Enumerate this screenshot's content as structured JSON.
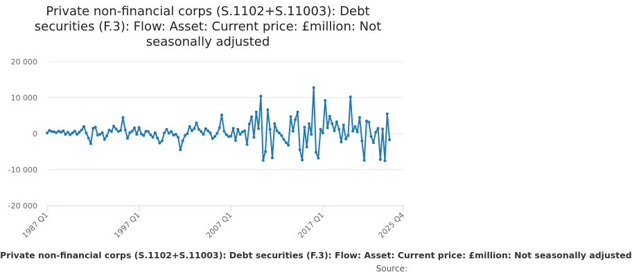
{
  "chart_data": {
    "type": "line",
    "title": "Private non-financial corps (S.1102+S.11003): Debt securities (F.3): Flow: Asset: Current price: £million: Not seasonally adjusted",
    "xlabel": "",
    "ylabel": "",
    "ylim": [
      -20000,
      20000
    ],
    "yticks": [
      "20 000",
      "10 000",
      "0",
      "-10 000",
      "-20 000"
    ],
    "ytick_values": [
      20000,
      10000,
      0,
      -10000,
      -20000
    ],
    "xlim": [
      0,
      155
    ],
    "xticks": [
      "1987 Q1",
      "1997 Q1",
      "2007 Q1",
      "2017 Q1",
      "2025 Q4"
    ],
    "xtick_positions": [
      0,
      40,
      80,
      120,
      155
    ],
    "grid": "horizontal",
    "legend_text": "Private non-financial corps (S.1102+S.11003): Debt securities (F.3): Flow: Asset: Current price: £million: Not seasonally adjusted",
    "source_label": "Source:",
    "series": [
      {
        "color": "#1f7ab4",
        "x_start": "1987 Q1",
        "values": [
          200,
          900,
          600,
          500,
          300,
          700,
          400,
          800,
          -200,
          400,
          -300,
          200,
          700,
          -200,
          400,
          1000,
          2000,
          200,
          -1200,
          -2800,
          1500,
          1800,
          -400,
          -200,
          300,
          -1600,
          -600,
          1000,
          600,
          2100,
          1300,
          600,
          900,
          4500,
          1000,
          -1300,
          300,
          700,
          1600,
          -200,
          1700,
          -100,
          -500,
          700,
          600,
          -300,
          -1000,
          300,
          -1200,
          -2600,
          -2000,
          200,
          1200,
          100,
          600,
          -400,
          -200,
          -1000,
          -4500,
          -2000,
          -500,
          0,
          2000,
          800,
          1400,
          3000,
          1200,
          600,
          -200,
          1400,
          800,
          200,
          -1400,
          -800,
          100,
          1600,
          5200,
          700,
          -300,
          -800,
          -700,
          1500,
          -1900,
          1200,
          -200,
          500,
          800,
          -3000,
          2700,
          4700,
          -1000,
          6000,
          1400,
          10400,
          -7400,
          -5000,
          6600,
          1200,
          -6700,
          2800,
          800,
          200,
          -500,
          -1600,
          -2500,
          -3200,
          4700,
          700,
          3900,
          6000,
          -4500,
          -7300,
          1800,
          -3700,
          2800,
          -200,
          12800,
          -5200,
          -6800,
          1200,
          200,
          9200,
          1600,
          4800,
          2800,
          800,
          3300,
          1200,
          -2300,
          2400,
          -1500,
          -500,
          10200,
          700,
          2000,
          500,
          4500,
          -2000,
          -7400,
          3500,
          3200,
          -800,
          -2500,
          400,
          1500,
          -7200,
          1300,
          -7500,
          5500,
          -1700
        ]
      }
    ]
  },
  "colors": {
    "series": "#1f7ab4",
    "grid": "#e6e6e6",
    "axis": "#ccd6eb",
    "text": "#222222"
  }
}
